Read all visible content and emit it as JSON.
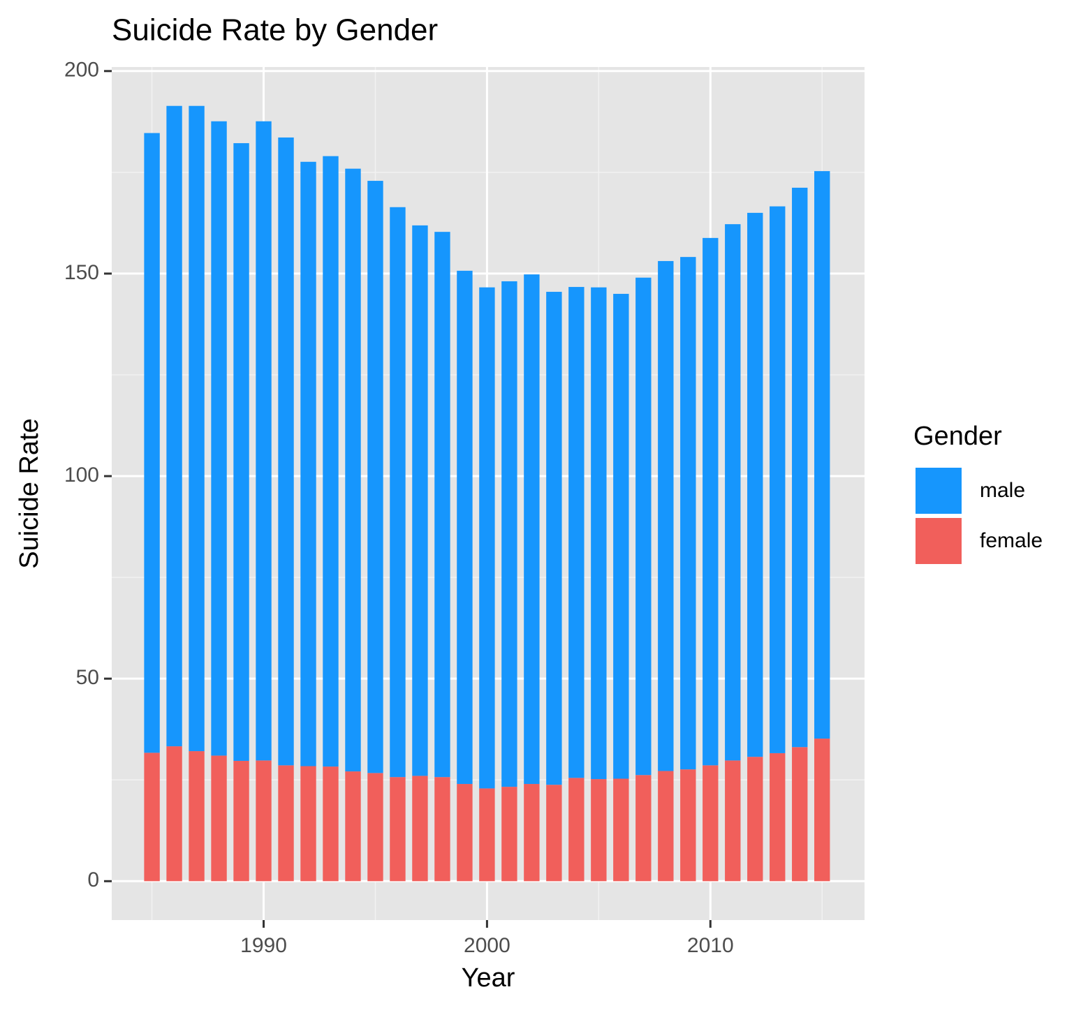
{
  "chart_data": {
    "type": "stacked_bar",
    "title": "Suicide Rate by Gender",
    "x_label": "Year",
    "y_label": "Suicide Rate",
    "x": [
      1985,
      1986,
      1987,
      1988,
      1989,
      1990,
      1991,
      1992,
      1993,
      1994,
      1995,
      1996,
      1997,
      1998,
      1999,
      2000,
      2001,
      2002,
      2003,
      2004,
      2005,
      2006,
      2007,
      2008,
      2009,
      2010,
      2011,
      2012,
      2013,
      2014,
      2015
    ],
    "series": [
      {
        "name": "male",
        "color": "#1696fd",
        "values": [
          153.0,
          158.1,
          159.3,
          156.6,
          152.5,
          157.8,
          155.0,
          149.2,
          150.7,
          148.8,
          146.2,
          140.7,
          135.9,
          134.6,
          126.7,
          123.7,
          124.8,
          125.8,
          121.7,
          121.2,
          121.4,
          119.7,
          122.8,
          125.9,
          126.5,
          130.2,
          132.4,
          134.3,
          135.0,
          138.1,
          140.1
        ]
      },
      {
        "name": "female",
        "color": "#f15f5b",
        "values": [
          31.7,
          33.3,
          32.1,
          31.0,
          29.7,
          29.8,
          28.6,
          28.4,
          28.3,
          27.1,
          26.7,
          25.7,
          26.0,
          25.7,
          24.0,
          22.9,
          23.3,
          24.0,
          23.8,
          25.5,
          25.2,
          25.3,
          26.2,
          27.2,
          27.6,
          28.6,
          29.8,
          30.7,
          31.6,
          33.1,
          35.2
        ]
      }
    ],
    "legend_title": "Gender",
    "xlim": [
      1983.2,
      2016.9
    ],
    "xticks": [
      1990,
      2000,
      2010
    ],
    "ylim": [
      -9.6,
      201
    ],
    "yticks": [
      0,
      50,
      100,
      150,
      200
    ],
    "grid": true
  }
}
